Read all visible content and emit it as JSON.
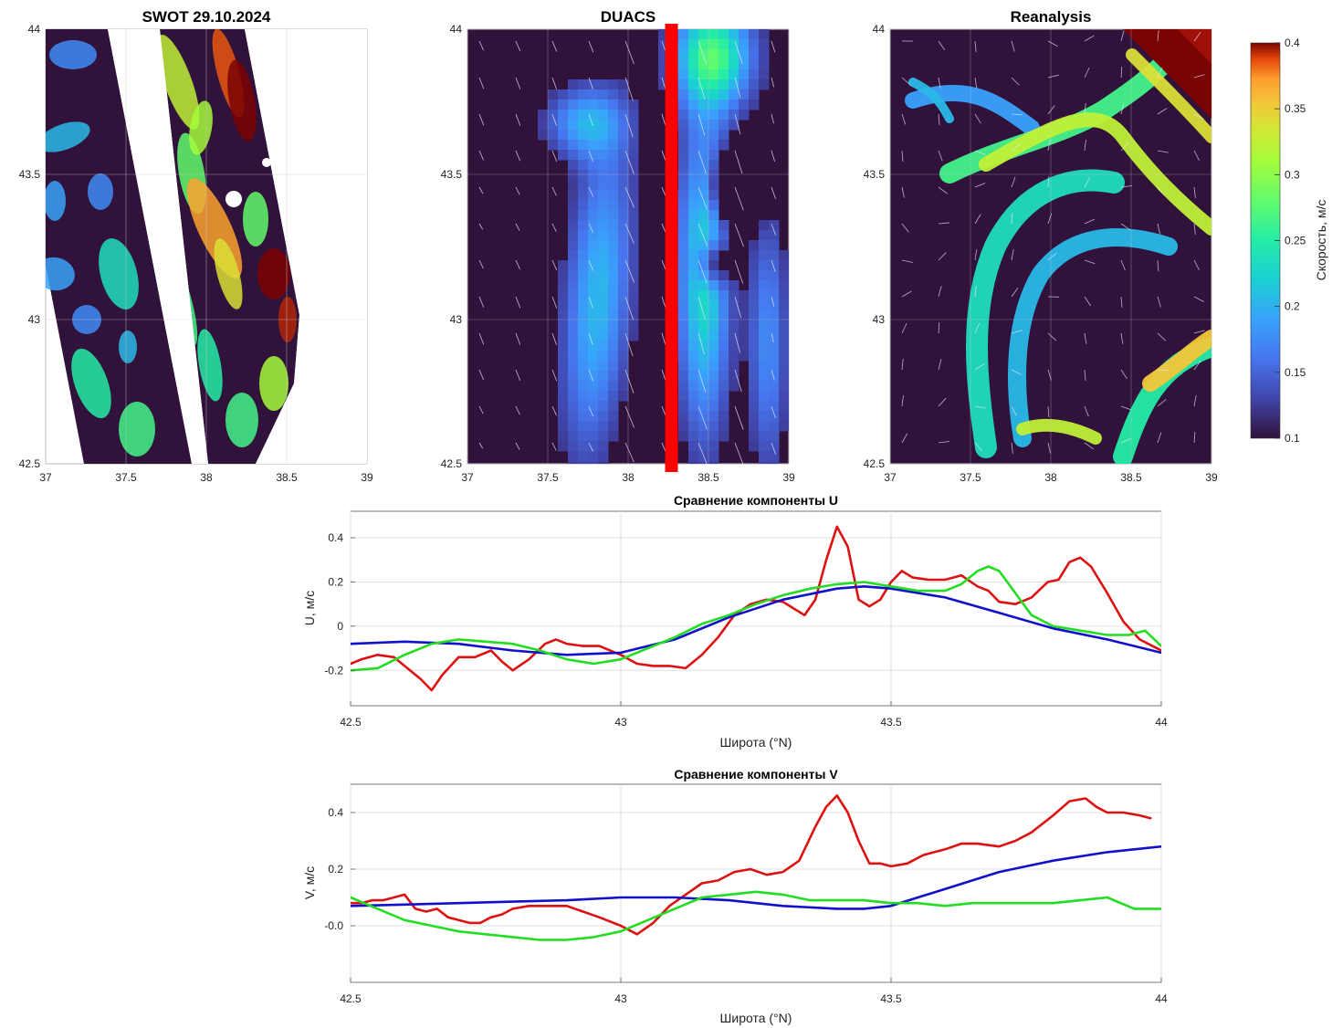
{
  "maps": [
    {
      "title": "SWOT 29.10.2024",
      "xticks": [
        "37",
        "37.5",
        "38",
        "38.5",
        "39"
      ],
      "yticks": [
        "42.5",
        "43",
        "43.5",
        "44"
      ]
    },
    {
      "title": "DUACS",
      "xticks": [
        "37",
        "37.5",
        "38",
        "38.5",
        "39"
      ],
      "yticks": [
        "42.5",
        "43",
        "43.5",
        "44"
      ]
    },
    {
      "title": "Reanalysis",
      "xticks": [
        "37",
        "37.5",
        "38",
        "38.5",
        "39"
      ],
      "yticks": [
        "42.5",
        "43",
        "43.5",
        "44"
      ]
    }
  ],
  "colorbar": {
    "label": "Скорость, м/с",
    "ticks": [
      "0.1",
      "0.15",
      "0.2",
      "0.25",
      "0.3",
      "0.35",
      "0.4"
    ],
    "range": [
      0.1,
      0.4
    ],
    "colormap": "turbo"
  },
  "transect_longitude": 38.27,
  "transect_color": "#ff0000",
  "chart_data": [
    {
      "type": "line",
      "title": "Сравнение компоненты U",
      "xlabel": "Широта (°N)",
      "ylabel": "U, м/с",
      "xlim": [
        42.5,
        44
      ],
      "ylim": [
        -0.36,
        0.52
      ],
      "xticks": [
        "42.5",
        "43",
        "43.5",
        "44"
      ],
      "yticks": [
        "-0.2",
        "0",
        "0.2",
        "0.4"
      ],
      "grid": true,
      "series": [
        {
          "color": "#dd1111",
          "x": [
            42.5,
            42.52,
            42.55,
            42.58,
            42.61,
            42.63,
            42.65,
            42.67,
            42.7,
            42.73,
            42.76,
            42.78,
            42.8,
            42.83,
            42.86,
            42.88,
            42.9,
            42.93,
            42.96,
            43.0,
            43.03,
            43.06,
            43.09,
            43.12,
            43.15,
            43.18,
            43.21,
            43.24,
            43.27,
            43.3,
            43.32,
            43.34,
            43.36,
            43.38,
            43.4,
            43.42,
            43.44,
            43.46,
            43.48,
            43.5,
            43.52,
            43.54,
            43.57,
            43.6,
            43.63,
            43.66,
            43.68,
            43.7,
            43.73,
            43.76,
            43.79,
            43.81,
            43.83,
            43.85,
            43.87,
            43.9,
            43.93,
            43.96,
            44.0
          ],
          "values": [
            -0.17,
            -0.15,
            -0.13,
            -0.14,
            -0.2,
            -0.24,
            -0.29,
            -0.22,
            -0.14,
            -0.14,
            -0.11,
            -0.16,
            -0.2,
            -0.15,
            -0.08,
            -0.06,
            -0.08,
            -0.09,
            -0.09,
            -0.13,
            -0.17,
            -0.18,
            -0.18,
            -0.19,
            -0.13,
            -0.05,
            0.05,
            0.1,
            0.12,
            0.11,
            0.08,
            0.05,
            0.12,
            0.3,
            0.45,
            0.36,
            0.12,
            0.09,
            0.12,
            0.2,
            0.25,
            0.22,
            0.21,
            0.21,
            0.23,
            0.18,
            0.16,
            0.11,
            0.1,
            0.13,
            0.2,
            0.21,
            0.29,
            0.31,
            0.27,
            0.15,
            0.02,
            -0.06,
            -0.11
          ]
        },
        {
          "color": "#1111cc",
          "x": [
            42.5,
            42.6,
            42.7,
            42.8,
            42.9,
            43.0,
            43.1,
            43.2,
            43.3,
            43.4,
            43.45,
            43.5,
            43.6,
            43.7,
            43.8,
            43.9,
            44.0
          ],
          "values": [
            -0.08,
            -0.07,
            -0.08,
            -0.11,
            -0.13,
            -0.12,
            -0.06,
            0.04,
            0.12,
            0.17,
            0.18,
            0.17,
            0.13,
            0.06,
            -0.01,
            -0.06,
            -0.12
          ]
        },
        {
          "color": "#22dd22",
          "x": [
            42.5,
            42.55,
            42.6,
            42.65,
            42.7,
            42.75,
            42.8,
            42.85,
            42.9,
            42.95,
            43.0,
            43.05,
            43.1,
            43.15,
            43.2,
            43.25,
            43.3,
            43.35,
            43.4,
            43.45,
            43.5,
            43.55,
            43.6,
            43.63,
            43.66,
            43.68,
            43.7,
            43.73,
            43.76,
            43.8,
            43.85,
            43.9,
            43.94,
            43.97,
            44.0
          ],
          "values": [
            -0.2,
            -0.19,
            -0.13,
            -0.08,
            -0.06,
            -0.07,
            -0.08,
            -0.11,
            -0.15,
            -0.17,
            -0.15,
            -0.1,
            -0.05,
            0.01,
            0.05,
            0.1,
            0.14,
            0.17,
            0.19,
            0.2,
            0.18,
            0.16,
            0.16,
            0.19,
            0.25,
            0.27,
            0.25,
            0.15,
            0.05,
            0.0,
            -0.02,
            -0.04,
            -0.04,
            -0.02,
            -0.09
          ]
        }
      ]
    },
    {
      "type": "line",
      "title": "Сравнение компоненты V",
      "xlabel": "Широта (°N)",
      "ylabel": "V, м/с",
      "xlim": [
        42.5,
        44
      ],
      "ylim": [
        -0.2,
        0.5
      ],
      "xticks": [
        "42.5",
        "43",
        "43.5",
        "44"
      ],
      "yticks": [
        "-0.0",
        "0.2",
        "0.4"
      ],
      "grid": true,
      "series": [
        {
          "color": "#dd1111",
          "x": [
            42.5,
            42.52,
            42.54,
            42.56,
            42.58,
            42.6,
            42.62,
            42.64,
            42.66,
            42.68,
            42.7,
            42.72,
            42.74,
            42.76,
            42.78,
            42.8,
            42.83,
            42.86,
            42.9,
            42.93,
            42.96,
            43.0,
            43.03,
            43.06,
            43.09,
            43.12,
            43.15,
            43.18,
            43.21,
            43.24,
            43.27,
            43.3,
            43.33,
            43.36,
            43.38,
            43.4,
            43.42,
            43.44,
            43.46,
            43.48,
            43.5,
            43.53,
            43.56,
            43.6,
            43.63,
            43.66,
            43.7,
            43.73,
            43.76,
            43.8,
            43.83,
            43.86,
            43.88,
            43.9,
            43.93,
            43.96,
            43.98
          ],
          "values": [
            0.08,
            0.08,
            0.09,
            0.09,
            0.1,
            0.11,
            0.06,
            0.05,
            0.06,
            0.03,
            0.02,
            0.01,
            0.01,
            0.03,
            0.04,
            0.06,
            0.07,
            0.07,
            0.07,
            0.05,
            0.03,
            0.0,
            -0.03,
            0.01,
            0.07,
            0.11,
            0.15,
            0.16,
            0.19,
            0.2,
            0.18,
            0.19,
            0.23,
            0.35,
            0.42,
            0.46,
            0.4,
            0.3,
            0.22,
            0.22,
            0.21,
            0.22,
            0.25,
            0.27,
            0.29,
            0.29,
            0.28,
            0.3,
            0.33,
            0.39,
            0.44,
            0.45,
            0.42,
            0.4,
            0.4,
            0.39,
            0.38
          ]
        },
        {
          "color": "#1111cc",
          "x": [
            42.5,
            42.6,
            42.7,
            42.8,
            42.9,
            43.0,
            43.1,
            43.2,
            43.3,
            43.4,
            43.45,
            43.5,
            43.6,
            43.7,
            43.8,
            43.9,
            44.0
          ],
          "values": [
            0.07,
            0.075,
            0.08,
            0.085,
            0.09,
            0.1,
            0.1,
            0.09,
            0.07,
            0.06,
            0.06,
            0.07,
            0.13,
            0.19,
            0.23,
            0.26,
            0.28
          ]
        },
        {
          "color": "#22dd22",
          "x": [
            42.5,
            42.55,
            42.6,
            42.65,
            42.7,
            42.75,
            42.8,
            42.85,
            42.9,
            42.95,
            43.0,
            43.05,
            43.1,
            43.15,
            43.2,
            43.25,
            43.3,
            43.35,
            43.4,
            43.45,
            43.5,
            43.55,
            43.6,
            43.65,
            43.7,
            43.75,
            43.8,
            43.85,
            43.9,
            43.95,
            44.0
          ],
          "values": [
            0.1,
            0.06,
            0.02,
            -0.0,
            -0.02,
            -0.03,
            -0.04,
            -0.05,
            -0.05,
            -0.04,
            -0.02,
            0.02,
            0.06,
            0.1,
            0.11,
            0.12,
            0.11,
            0.09,
            0.09,
            0.09,
            0.08,
            0.08,
            0.07,
            0.08,
            0.08,
            0.08,
            0.08,
            0.09,
            0.1,
            0.06,
            0.06
          ]
        }
      ]
    }
  ]
}
